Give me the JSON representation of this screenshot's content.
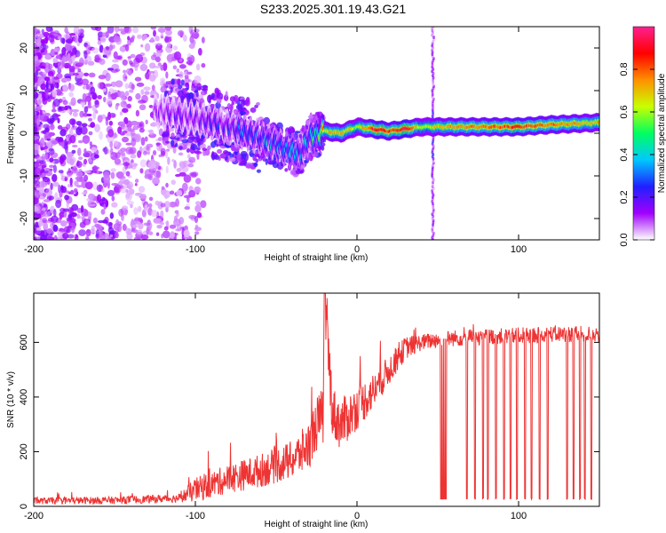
{
  "title": "S233.2025.301.19.43.G21",
  "chart_data": [
    {
      "type": "heatmap",
      "name": "spectrogram",
      "xlabel": "Height of straight line (km)",
      "ylabel": "Frequency (Hz)",
      "xlim": [
        -200,
        150
      ],
      "ylim": [
        -25,
        25
      ],
      "xticks": [
        -200,
        -100,
        0,
        100
      ],
      "yticks": [
        -20,
        -10,
        0,
        10,
        20
      ],
      "colorbar": {
        "label": "Normalized spectral amplitude",
        "range": [
          0,
          1
        ],
        "ticks": [
          "0.0",
          "0.2",
          "0.4",
          "0.6",
          "0.8"
        ],
        "tick_values": [
          0.0,
          0.2,
          0.4,
          0.6,
          0.8
        ],
        "colors": [
          "#ffffff",
          "#a000ff",
          "#2020ff",
          "#00c8ff",
          "#00ff60",
          "#c8ff00",
          "#ff9000",
          "#ff0000",
          "#ff2090"
        ]
      },
      "ridge": {
        "x": [
          -120,
          -100,
          -80,
          -60,
          -45,
          -35,
          -30,
          -20,
          -10,
          0,
          10,
          20,
          30,
          40,
          50,
          60,
          80,
          100,
          120,
          150
        ],
        "freq": [
          5,
          3.5,
          1.5,
          -1,
          -3.5,
          -5,
          -1,
          0.5,
          0,
          1.5,
          1,
          0.5,
          1,
          1.5,
          1.5,
          1.5,
          1.5,
          1.5,
          2,
          2.5
        ],
        "amplitude": [
          0.15,
          0.2,
          0.25,
          0.35,
          0.4,
          0.35,
          0.4,
          0.7,
          0.75,
          0.6,
          0.9,
          0.85,
          0.95,
          0.6,
          0.7,
          0.75,
          0.8,
          0.85,
          0.8,
          0.7
        ]
      },
      "noise_region_km": [
        -200,
        -110
      ],
      "spike_at_km": 47
    },
    {
      "type": "line",
      "name": "snr",
      "xlabel": "Height of straight line (km)",
      "ylabel": "SNR (10 * v/v)",
      "xlim": [
        -200,
        150
      ],
      "ylim": [
        0,
        780
      ],
      "xticks": [
        -200,
        -100,
        0,
        100
      ],
      "yticks": [
        0,
        200,
        400,
        600
      ],
      "color": "#ee3333",
      "envelope": {
        "x": [
          -200,
          -150,
          -110,
          -100,
          -80,
          -60,
          -40,
          -30,
          -25,
          -21,
          -20,
          -15,
          -10,
          0,
          10,
          20,
          30,
          40,
          50,
          60,
          80,
          100,
          120,
          150
        ],
        "y": [
          20,
          22,
          30,
          60,
          100,
          130,
          170,
          220,
          300,
          330,
          750,
          340,
          300,
          360,
          420,
          500,
          580,
          600,
          610,
          615,
          620,
          625,
          630,
          630
        ]
      },
      "noise_amplitude": {
        "x": [
          -200,
          -110,
          -100,
          -40,
          -20,
          0,
          40,
          150
        ],
        "y": [
          12,
          15,
          45,
          70,
          110,
          80,
          30,
          30
        ]
      },
      "dropouts": {
        "x": [
          52,
          53,
          54,
          55,
          68,
          73,
          78,
          81,
          86,
          91,
          95,
          99,
          104,
          108,
          113,
          118,
          130,
          134,
          138,
          141,
          145
        ],
        "y": 28
      }
    }
  ]
}
